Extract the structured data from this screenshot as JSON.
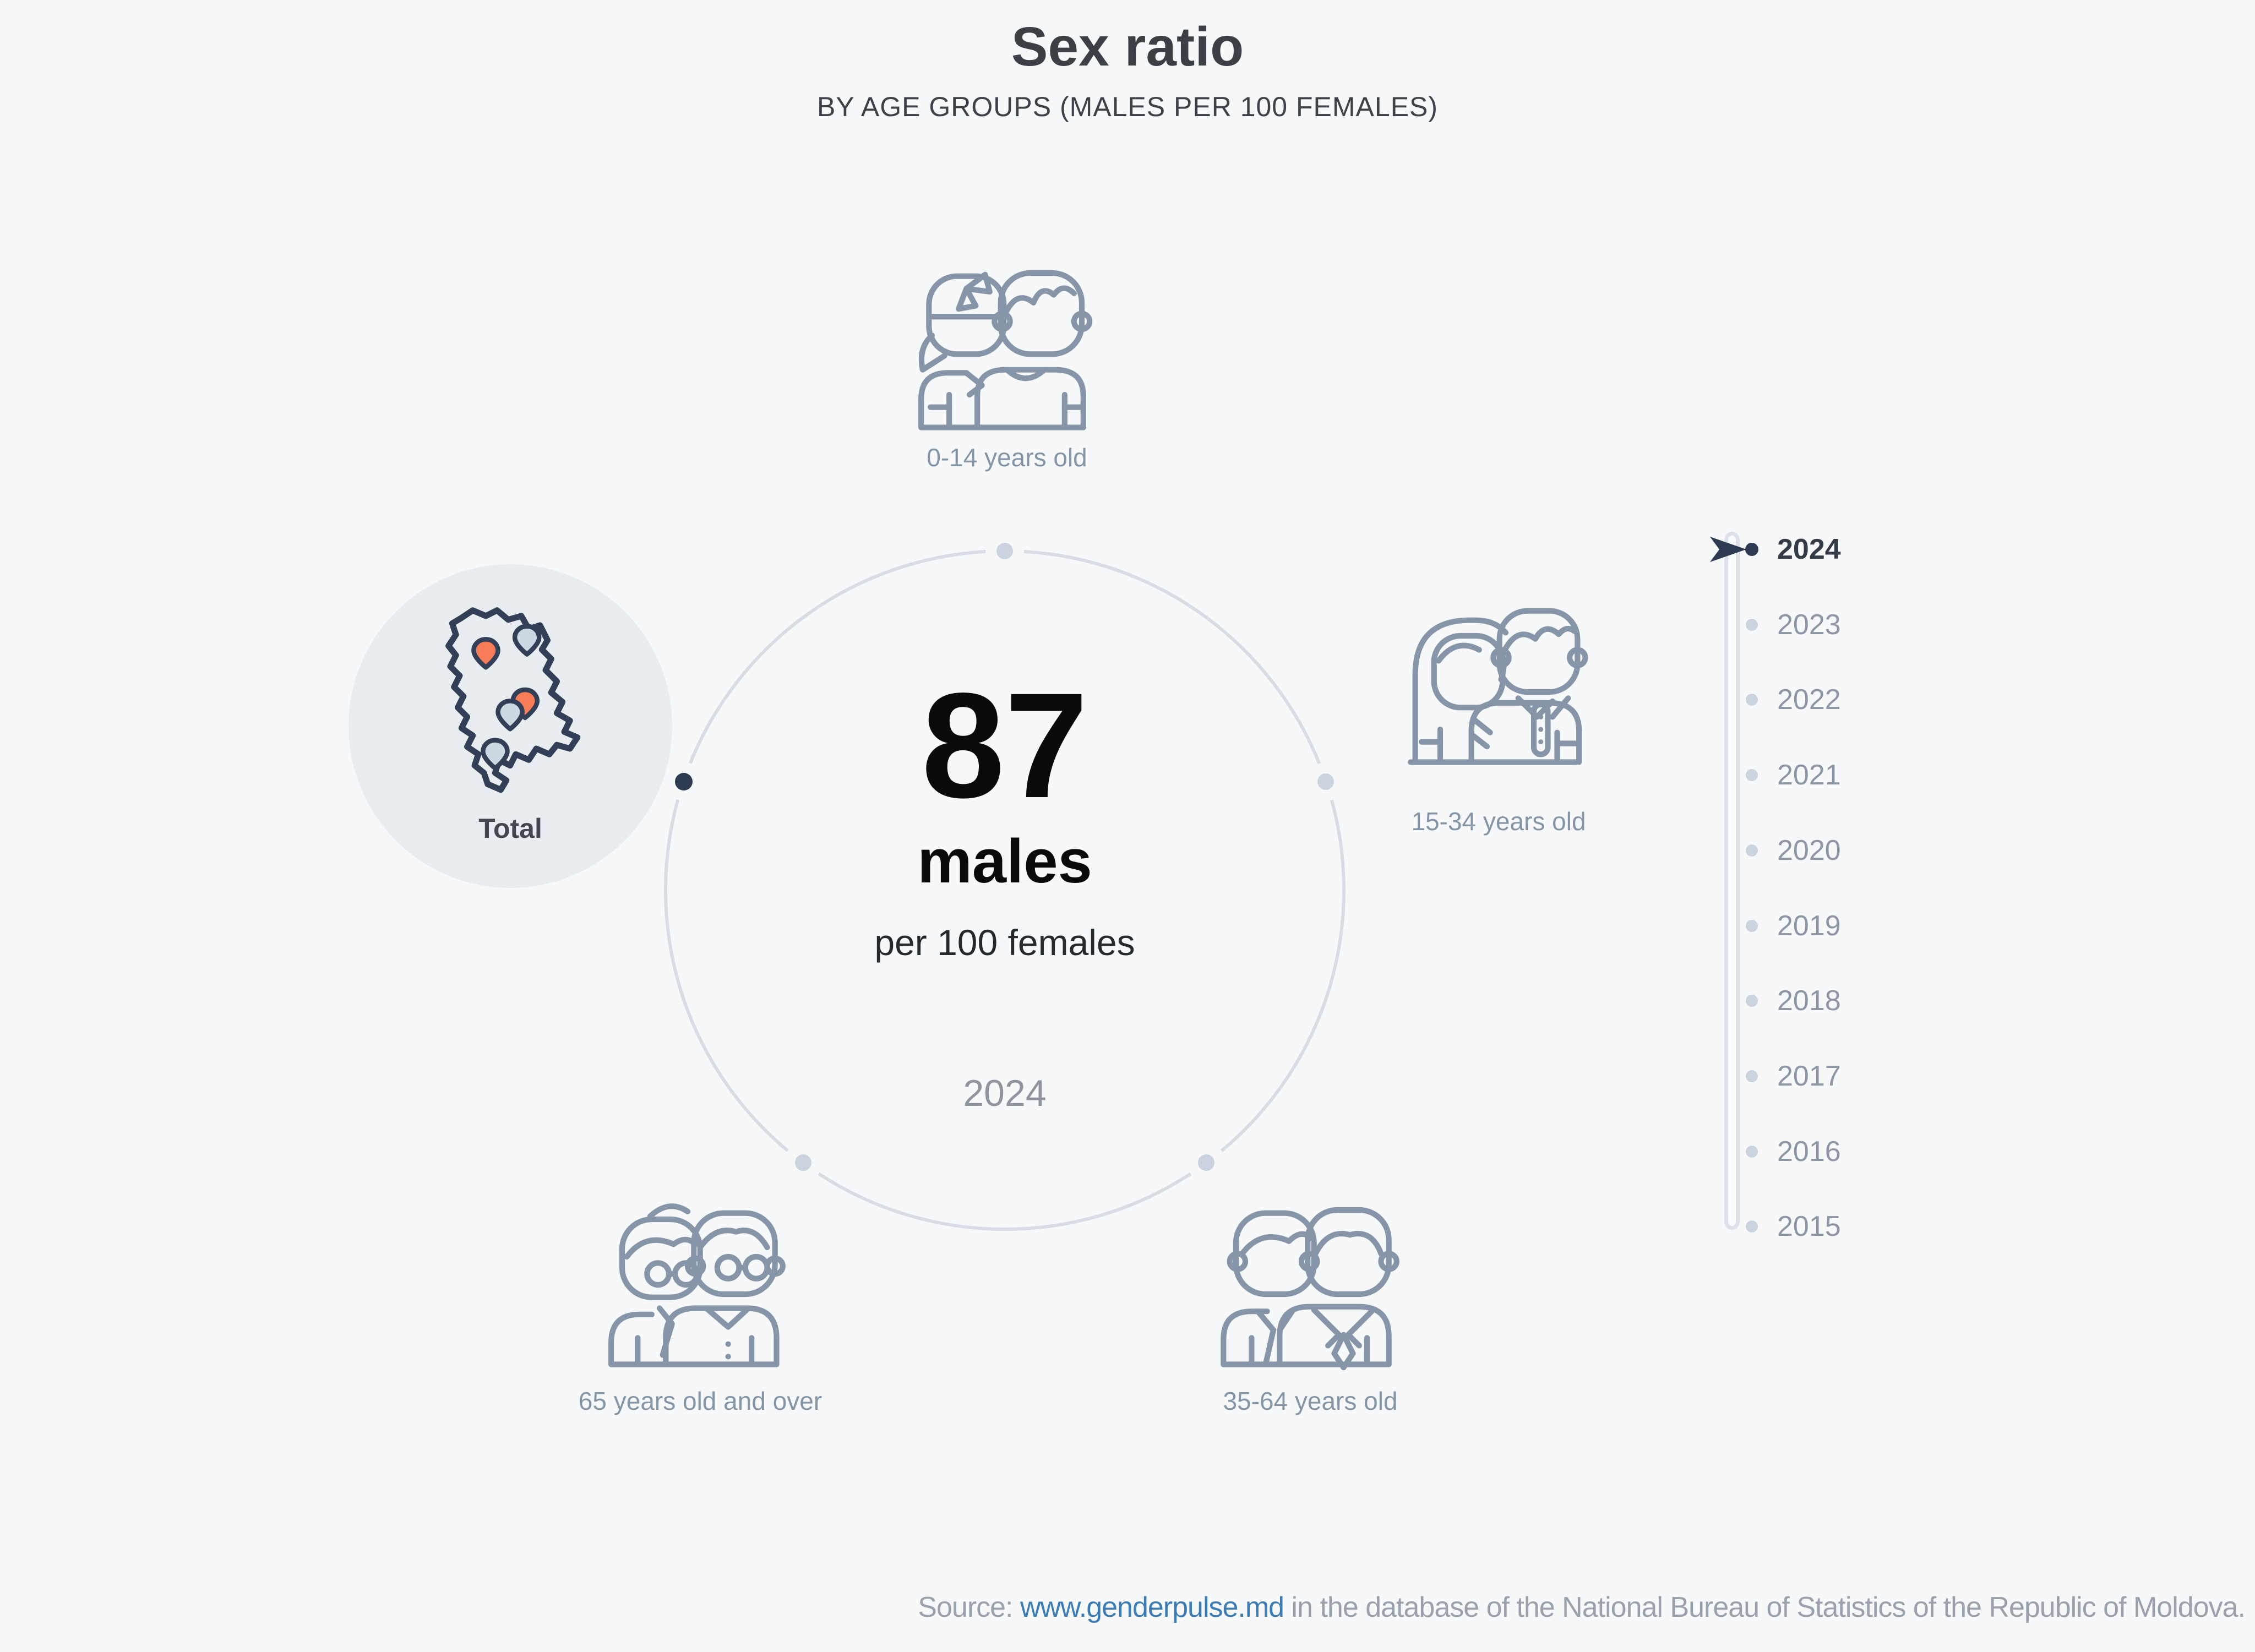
{
  "title": "Sex ratio",
  "subtitle": "BY AGE GROUPS (MALES PER 100 FEMALES)",
  "center": {
    "value": "87",
    "unit": "males",
    "per_label": "per 100 females",
    "year": "2024"
  },
  "groups": [
    {
      "label": "0-14 years old",
      "selected": false
    },
    {
      "label": "15-34 years old",
      "selected": false
    },
    {
      "label": "35-64 years old",
      "selected": false
    },
    {
      "label": "65 years old and over",
      "selected": false
    },
    {
      "label": "Total",
      "selected": true
    }
  ],
  "timeline": {
    "years": [
      "2024",
      "2023",
      "2022",
      "2021",
      "2020",
      "2019",
      "2018",
      "2017",
      "2016",
      "2015"
    ],
    "selected": "2024"
  },
  "footer": {
    "prefix": "Source: ",
    "link": "www.genderpulse.md",
    "suffix": " in the database of the National Bureau of Statistics of the Republic of Moldova."
  },
  "colors": {
    "background": "#f7f8fa",
    "ink": "#3b4046",
    "value_black": "#0a0a0a",
    "icon_gray_blue": "#8696a8",
    "ring_gray": "#d8dde5",
    "node_dot": "#cbd3de",
    "navy_accent": "#2e3a52",
    "orange_pin": "#f97c59",
    "light_pin": "#ccd9e3",
    "map_outline": "#333f56",
    "total_circle_bg": "#e9edf2",
    "link_blue": "#3b7cb5",
    "footer_gray": "#99a2ac",
    "year_dim": "#8c96a4"
  },
  "chart_data": {
    "type": "table",
    "title": "Sex ratio",
    "subtitle": "BY AGE GROUPS (MALES PER 100 FEMALES)",
    "categories": [
      "Total"
    ],
    "values": [
      87
    ],
    "unit": "males per 100 females",
    "selected_category": "Total",
    "selected_year": "2024",
    "age_groups": [
      "0-14 years old",
      "15-34 years old",
      "35-64 years old",
      "65 years old and over",
      "Total"
    ],
    "years": [
      "2024",
      "2023",
      "2022",
      "2021",
      "2020",
      "2019",
      "2018",
      "2017",
      "2016",
      "2015"
    ]
  }
}
